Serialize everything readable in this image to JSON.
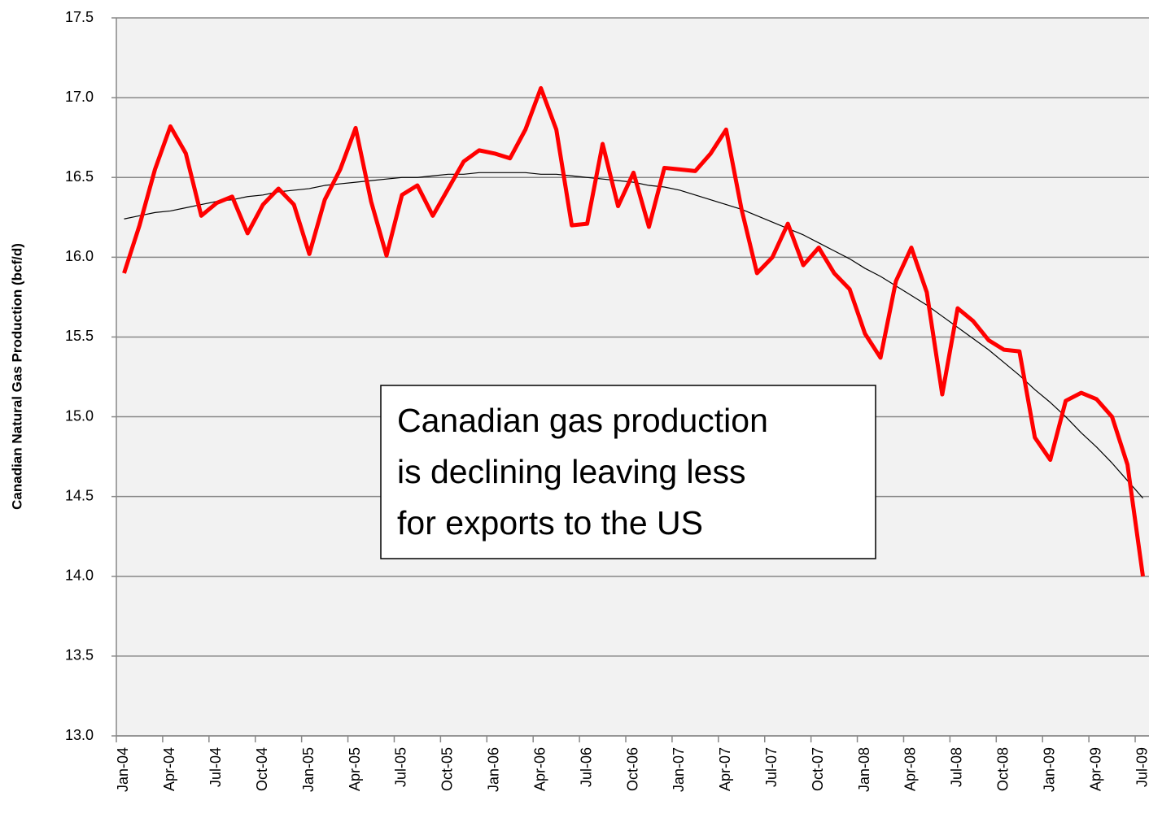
{
  "chart_data": {
    "type": "line",
    "y_label": "Canadian Natural Gas Production (bcf/d)",
    "annotation": [
      "Canadian gas production",
      "is declining leaving less",
      "for exports to the US"
    ],
    "categories": [
      "Jan-04",
      null,
      null,
      "Apr-04",
      null,
      null,
      "Jul-04",
      null,
      null,
      "Oct-04",
      null,
      null,
      "Jan-05",
      null,
      null,
      "Apr-05",
      null,
      null,
      "Jul-05",
      null,
      null,
      "Oct-05",
      null,
      null,
      "Jan-06",
      null,
      null,
      "Apr-06",
      null,
      null,
      "Jul-06",
      null,
      null,
      "Oct-06",
      null,
      null,
      "Jan-07",
      null,
      null,
      "Apr-07",
      null,
      null,
      "Jul-07",
      null,
      null,
      "Oct-07",
      null,
      null,
      "Jan-08",
      null,
      null,
      "Apr-08",
      null,
      null,
      "Jul-08",
      null,
      null,
      "Oct-08",
      null,
      null,
      "Jan-09",
      null,
      null,
      "Apr-09",
      null,
      null,
      "Jul-09"
    ],
    "series": [
      {
        "color": "#ff0000",
        "values": [
          15.9,
          16.2,
          16.55,
          16.82,
          16.65,
          16.26,
          16.34,
          16.38,
          16.15,
          16.33,
          16.43,
          16.33,
          16.02,
          16.36,
          16.55,
          16.81,
          16.35,
          16.01,
          16.39,
          16.45,
          16.26,
          16.43,
          16.6,
          16.67,
          16.65,
          16.62,
          16.8,
          17.06,
          16.8,
          16.2,
          16.21,
          16.71,
          16.32,
          16.53,
          16.19,
          16.56,
          16.55,
          16.54,
          16.65,
          16.8,
          16.3,
          15.9,
          16.0,
          16.21,
          15.95,
          16.06,
          15.9,
          15.8,
          15.52,
          15.37,
          15.85,
          16.06,
          15.78,
          15.14,
          15.68,
          15.6,
          15.48,
          15.42,
          15.41,
          14.87,
          14.73,
          15.1,
          15.15,
          15.11,
          15.0,
          14.7,
          14.0
        ]
      },
      {
        "color": "#000000",
        "values": [
          16.24,
          16.26,
          16.28,
          16.29,
          16.31,
          16.33,
          16.35,
          16.36,
          16.38,
          16.39,
          16.41,
          16.42,
          16.43,
          16.45,
          16.46,
          16.47,
          16.48,
          16.49,
          16.5,
          16.5,
          16.51,
          16.52,
          16.52,
          16.53,
          16.53,
          16.53,
          16.53,
          16.52,
          16.52,
          16.51,
          16.5,
          16.49,
          16.48,
          16.47,
          16.45,
          16.44,
          16.42,
          16.39,
          16.36,
          16.33,
          16.3,
          16.26,
          16.22,
          16.18,
          16.14,
          16.09,
          16.04,
          15.99,
          15.93,
          15.88,
          15.82,
          15.76,
          15.7,
          15.63,
          15.56,
          15.49,
          15.42,
          15.34,
          15.26,
          15.17,
          15.09,
          15.0,
          14.9,
          14.81,
          14.71,
          14.6,
          14.49
        ]
      }
    ],
    "ylim": [
      13.0,
      17.5
    ],
    "yticks": [
      {
        "value": 13.0,
        "label": "13.0"
      },
      13.5,
      {
        "value": 14.0,
        "label": "14.0"
      },
      14.5,
      {
        "value": 15.0,
        "label": "15.0"
      },
      15.5,
      {
        "value": 16.0,
        "label": "16.0"
      },
      16.5,
      {
        "value": 17.0,
        "label": "17.0"
      },
      17.5
    ],
    "grid": true
  }
}
